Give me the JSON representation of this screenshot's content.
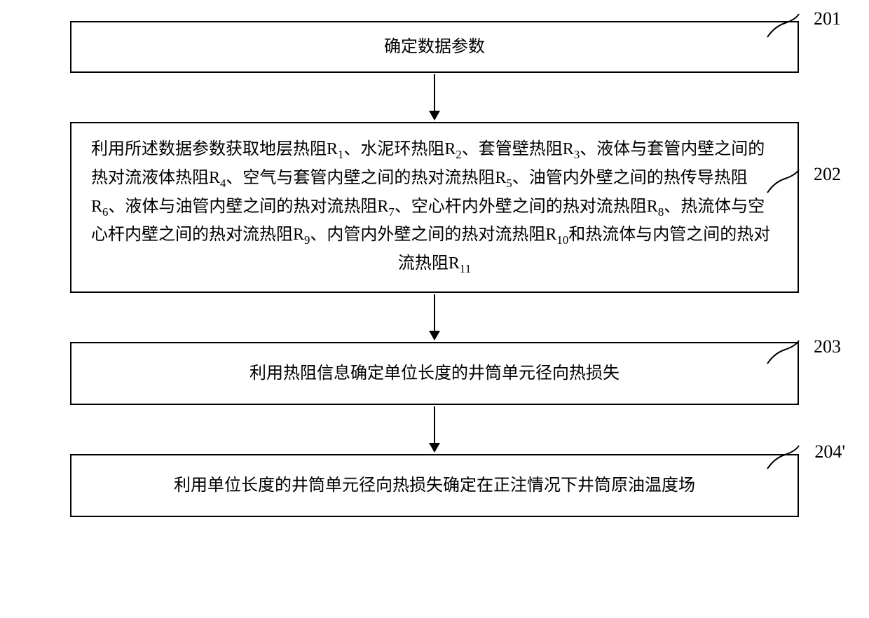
{
  "flowchart": {
    "type": "flowchart",
    "nodes": [
      {
        "id": "201",
        "label": "201",
        "text": "确定数据参数"
      },
      {
        "id": "202",
        "label": "202",
        "text_html": "利用所述数据参数获取地层热阻R<sub>1</sub>、水泥环热阻R<sub>2</sub>、套管壁热阻R<sub>3</sub>、液体与套管内壁之间的热对流液体热阻R<sub>4</sub>、空气与套管内壁之间的热对流热阻R<sub>5</sub>、油管内外壁之间的热传导热阻R<sub>6</sub>、液体与油管内壁之间的热对流热阻R<sub>7</sub>、空心杆内外壁之间的热对流热阻R<sub>8</sub>、热流体与空心杆内壁之间的热对流热阻R<sub>9</sub>、内管内外壁之间的热对流热阻R<sub>10</sub>和热流体与内管之间的热对流热阻R<sub>11</sub>"
      },
      {
        "id": "203",
        "label": "203",
        "text": "利用热阻信息确定单位长度的井筒单元径向热损失"
      },
      {
        "id": "204",
        "label": "204'",
        "text": "利用单位长度的井筒单元径向热损失确定在正注情况下井筒原油温度场"
      }
    ],
    "edges": [
      {
        "from": "201",
        "to": "202"
      },
      {
        "from": "202",
        "to": "203"
      },
      {
        "from": "203",
        "to": "204"
      }
    ],
    "box_border_color": "#000000",
    "box_border_width": 2,
    "box_background": "#ffffff",
    "text_color": "#000000",
    "font_size": 24,
    "label_font_size": 26,
    "arrow_color": "#000000",
    "background_color": "#ffffff"
  }
}
